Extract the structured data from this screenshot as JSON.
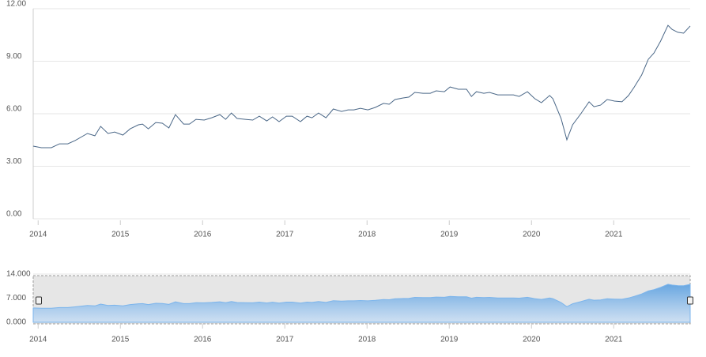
{
  "chart_data": [
    {
      "type": "line",
      "color": "#4a6787",
      "x": [
        2013.94,
        2014.04,
        2014.16,
        2014.26,
        2014.36,
        2014.45,
        2014.6,
        2014.69,
        2014.76,
        2014.85,
        2014.93,
        2015.03,
        2015.12,
        2015.22,
        2015.27,
        2015.34,
        2015.43,
        2015.51,
        2015.59,
        2015.67,
        2015.77,
        2015.84,
        2015.92,
        2016.02,
        2016.11,
        2016.21,
        2016.28,
        2016.35,
        2016.42,
        2016.52,
        2016.61,
        2016.69,
        2016.78,
        2016.85,
        2016.93,
        2017.02,
        2017.09,
        2017.19,
        2017.27,
        2017.33,
        2017.41,
        2017.5,
        2017.59,
        2017.69,
        2017.77,
        2017.84,
        2017.92,
        2018.01,
        2018.1,
        2018.2,
        2018.27,
        2018.34,
        2018.44,
        2018.51,
        2018.58,
        2018.68,
        2018.77,
        2018.84,
        2018.94,
        2019.01,
        2019.11,
        2019.21,
        2019.27,
        2019.33,
        2019.42,
        2019.49,
        2019.59,
        2019.69,
        2019.78,
        2019.85,
        2019.95,
        2020.04,
        2020.12,
        2020.22,
        2020.26,
        2020.36,
        2020.43,
        2020.5,
        2020.6,
        2020.7,
        2020.76,
        2020.84,
        2020.92,
        2021.01,
        2021.1,
        2021.18,
        2021.25,
        2021.34,
        2021.42,
        2021.49,
        2021.57,
        2021.66,
        2021.71,
        2021.78,
        2021.85,
        2021.93
      ],
      "values": [
        4.15,
        4.06,
        4.06,
        4.28,
        4.28,
        4.47,
        4.87,
        4.74,
        5.28,
        4.87,
        4.96,
        4.78,
        5.14,
        5.37,
        5.41,
        5.14,
        5.5,
        5.46,
        5.19,
        5.95,
        5.41,
        5.41,
        5.68,
        5.64,
        5.77,
        5.95,
        5.68,
        6.04,
        5.73,
        5.68,
        5.64,
        5.86,
        5.59,
        5.82,
        5.55,
        5.86,
        5.86,
        5.55,
        5.86,
        5.77,
        6.04,
        5.77,
        6.27,
        6.13,
        6.22,
        6.22,
        6.31,
        6.22,
        6.36,
        6.59,
        6.54,
        6.81,
        6.9,
        6.95,
        7.22,
        7.17,
        7.17,
        7.31,
        7.26,
        7.53,
        7.4,
        7.4,
        6.99,
        7.26,
        7.17,
        7.22,
        7.08,
        7.08,
        7.08,
        6.99,
        7.26,
        6.86,
        6.63,
        7.04,
        6.86,
        5.73,
        4.51,
        5.37,
        6.0,
        6.68,
        6.4,
        6.49,
        6.81,
        6.72,
        6.68,
        7.04,
        7.53,
        8.21,
        9.11,
        9.47,
        10.15,
        11.05,
        10.82,
        10.65,
        10.6,
        11.01
      ],
      "xlim": [
        2013.94,
        2021.93
      ],
      "xticks": [
        2014,
        2015,
        2016,
        2017,
        2018,
        2019,
        2020,
        2021
      ],
      "ylim": [
        0,
        12
      ],
      "yticks": [
        {
          "value": 0,
          "label": "0.00"
        },
        {
          "value": 3,
          "label": "3.00"
        },
        {
          "value": 6,
          "label": "6.00"
        },
        {
          "value": 9,
          "label": "9.00"
        },
        {
          "value": 12,
          "label": "12.00"
        }
      ],
      "grid": true
    },
    {
      "type": "area",
      "color": "#7cb5ec",
      "x": [
        2013.94,
        2014.04,
        2014.16,
        2014.26,
        2014.36,
        2014.45,
        2014.6,
        2014.69,
        2014.76,
        2014.85,
        2014.93,
        2015.03,
        2015.12,
        2015.22,
        2015.27,
        2015.34,
        2015.43,
        2015.51,
        2015.59,
        2015.67,
        2015.77,
        2015.84,
        2015.92,
        2016.02,
        2016.11,
        2016.21,
        2016.28,
        2016.35,
        2016.42,
        2016.52,
        2016.61,
        2016.69,
        2016.78,
        2016.85,
        2016.93,
        2017.02,
        2017.09,
        2017.19,
        2017.27,
        2017.33,
        2017.41,
        2017.5,
        2017.59,
        2017.69,
        2017.77,
        2017.84,
        2017.92,
        2018.01,
        2018.1,
        2018.2,
        2018.27,
        2018.34,
        2018.44,
        2018.51,
        2018.58,
        2018.68,
        2018.77,
        2018.84,
        2018.94,
        2019.01,
        2019.11,
        2019.21,
        2019.27,
        2019.33,
        2019.42,
        2019.49,
        2019.59,
        2019.69,
        2019.78,
        2019.85,
        2019.95,
        2020.04,
        2020.12,
        2020.22,
        2020.26,
        2020.36,
        2020.43,
        2020.5,
        2020.6,
        2020.7,
        2020.76,
        2020.84,
        2020.92,
        2021.01,
        2021.1,
        2021.18,
        2021.25,
        2021.34,
        2021.42,
        2021.49,
        2021.57,
        2021.66,
        2021.71,
        2021.78,
        2021.85,
        2021.93
      ],
      "values": [
        4.15,
        4.06,
        4.06,
        4.28,
        4.28,
        4.47,
        4.87,
        4.74,
        5.28,
        4.87,
        4.96,
        4.78,
        5.14,
        5.37,
        5.41,
        5.14,
        5.5,
        5.46,
        5.19,
        5.95,
        5.41,
        5.41,
        5.68,
        5.64,
        5.77,
        5.95,
        5.68,
        6.04,
        5.73,
        5.68,
        5.64,
        5.86,
        5.59,
        5.82,
        5.55,
        5.86,
        5.86,
        5.55,
        5.86,
        5.77,
        6.04,
        5.77,
        6.27,
        6.13,
        6.22,
        6.22,
        6.31,
        6.22,
        6.36,
        6.59,
        6.54,
        6.81,
        6.9,
        6.95,
        7.22,
        7.17,
        7.17,
        7.31,
        7.26,
        7.53,
        7.4,
        7.4,
        6.99,
        7.26,
        7.17,
        7.22,
        7.08,
        7.08,
        7.08,
        6.99,
        7.26,
        6.86,
        6.63,
        7.04,
        6.86,
        5.73,
        4.51,
        5.37,
        6.0,
        6.68,
        6.4,
        6.49,
        6.81,
        6.72,
        6.68,
        7.04,
        7.53,
        8.21,
        9.11,
        9.47,
        10.15,
        11.05,
        10.82,
        10.65,
        10.6,
        11.01
      ],
      "xlim": [
        2013.94,
        2021.93
      ],
      "xticks": [
        2014,
        2015,
        2016,
        2017,
        2018,
        2019,
        2020,
        2021
      ],
      "ylim": [
        0,
        14
      ],
      "yticks": [
        {
          "value": 0,
          "label": "0.000"
        },
        {
          "value": 7,
          "label": "7.000"
        },
        {
          "value": 14,
          "label": "14.000"
        }
      ],
      "grid": true
    }
  ]
}
